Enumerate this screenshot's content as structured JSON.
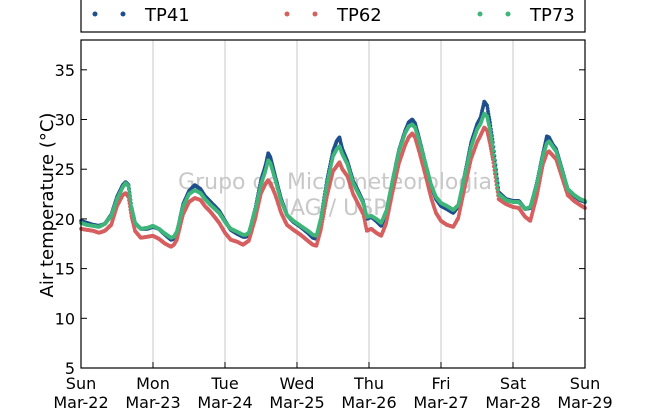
{
  "watermark": {
    "line1": "Grupo de Micrometeorologia",
    "line2": "IAG / USP"
  },
  "chart_data": {
    "type": "scatter",
    "title": "",
    "xlabel": "",
    "ylabel": "Air temperature (°C)",
    "ylim": [
      5,
      38
    ],
    "yticks": [
      5,
      10,
      15,
      20,
      25,
      30,
      35
    ],
    "xlim": [
      0,
      7
    ],
    "xticks": [
      {
        "day": "Sun",
        "date": "Mar-22"
      },
      {
        "day": "Mon",
        "date": "Mar-23"
      },
      {
        "day": "Tue",
        "date": "Mar-24"
      },
      {
        "day": "Wed",
        "date": "Mar-25"
      },
      {
        "day": "Thu",
        "date": "Mar-26"
      },
      {
        "day": "Fri",
        "date": "Mar-27"
      },
      {
        "day": "Sat",
        "date": "Mar-28"
      },
      {
        "day": "Sun",
        "date": "Mar-29"
      }
    ],
    "grid": "vertical",
    "legend_position": "top (above plot)",
    "series": [
      {
        "name": "TP41",
        "color": "#1f4e8c",
        "points": [
          [
            0.0,
            19.8
          ],
          [
            0.08,
            19.6
          ],
          [
            0.17,
            19.4
          ],
          [
            0.25,
            19.3
          ],
          [
            0.33,
            19.5
          ],
          [
            0.42,
            20.4
          ],
          [
            0.5,
            22.2
          ],
          [
            0.58,
            23.4
          ],
          [
            0.62,
            23.7
          ],
          [
            0.66,
            23.4
          ],
          [
            0.7,
            21.2
          ],
          [
            0.75,
            19.6
          ],
          [
            0.83,
            19.0
          ],
          [
            0.92,
            19.0
          ],
          [
            1.0,
            19.2
          ],
          [
            1.08,
            19.0
          ],
          [
            1.17,
            18.4
          ],
          [
            1.25,
            17.9
          ],
          [
            1.29,
            18.0
          ],
          [
            1.33,
            18.6
          ],
          [
            1.42,
            21.5
          ],
          [
            1.5,
            22.8
          ],
          [
            1.58,
            23.4
          ],
          [
            1.66,
            23.0
          ],
          [
            1.72,
            22.3
          ],
          [
            1.8,
            21.7
          ],
          [
            1.92,
            20.8
          ],
          [
            2.0,
            19.8
          ],
          [
            2.08,
            18.9
          ],
          [
            2.17,
            18.5
          ],
          [
            2.25,
            18.2
          ],
          [
            2.29,
            18.2
          ],
          [
            2.33,
            18.4
          ],
          [
            2.42,
            21.0
          ],
          [
            2.5,
            23.9
          ],
          [
            2.56,
            25.3
          ],
          [
            2.6,
            26.6
          ],
          [
            2.63,
            26.2
          ],
          [
            2.7,
            24.2
          ],
          [
            2.78,
            22.0
          ],
          [
            2.86,
            20.4
          ],
          [
            2.95,
            19.7
          ],
          [
            3.05,
            19.2
          ],
          [
            3.15,
            18.6
          ],
          [
            3.22,
            18.1
          ],
          [
            3.27,
            18.0
          ],
          [
            3.33,
            20.0
          ],
          [
            3.42,
            24.0
          ],
          [
            3.5,
            26.8
          ],
          [
            3.55,
            27.8
          ],
          [
            3.59,
            28.2
          ],
          [
            3.63,
            27.0
          ],
          [
            3.7,
            25.8
          ],
          [
            3.78,
            23.8
          ],
          [
            3.85,
            22.8
          ],
          [
            3.92,
            21.7
          ],
          [
            3.97,
            20.0
          ],
          [
            4.03,
            20.2
          ],
          [
            4.1,
            19.8
          ],
          [
            4.17,
            19.3
          ],
          [
            4.24,
            20.6
          ],
          [
            4.33,
            24.0
          ],
          [
            4.42,
            27.0
          ],
          [
            4.5,
            28.8
          ],
          [
            4.55,
            29.7
          ],
          [
            4.6,
            30.0
          ],
          [
            4.64,
            29.6
          ],
          [
            4.7,
            28.0
          ],
          [
            4.78,
            25.7
          ],
          [
            4.86,
            23.4
          ],
          [
            4.93,
            22.0
          ],
          [
            5.0,
            21.3
          ],
          [
            5.08,
            21.0
          ],
          [
            5.17,
            20.6
          ],
          [
            5.24,
            21.3
          ],
          [
            5.33,
            24.5
          ],
          [
            5.42,
            27.7
          ],
          [
            5.5,
            29.5
          ],
          [
            5.55,
            30.2
          ],
          [
            5.6,
            31.8
          ],
          [
            5.64,
            31.4
          ],
          [
            5.68,
            29.7
          ],
          [
            5.72,
            27.7
          ],
          [
            5.8,
            22.7
          ],
          [
            5.9,
            22.0
          ],
          [
            6.0,
            21.8
          ],
          [
            6.08,
            21.8
          ],
          [
            6.17,
            21.0
          ],
          [
            6.24,
            21.1
          ],
          [
            6.33,
            23.6
          ],
          [
            6.42,
            26.7
          ],
          [
            6.47,
            28.3
          ],
          [
            6.5,
            28.2
          ],
          [
            6.55,
            27.5
          ],
          [
            6.6,
            27.0
          ],
          [
            6.68,
            25.0
          ],
          [
            6.76,
            23.0
          ],
          [
            6.85,
            22.3
          ],
          [
            6.93,
            21.9
          ],
          [
            7.0,
            21.7
          ]
        ]
      },
      {
        "name": "TP62",
        "color": "#d65f5f",
        "points": [
          [
            0.0,
            19.0
          ],
          [
            0.08,
            18.9
          ],
          [
            0.17,
            18.8
          ],
          [
            0.25,
            18.6
          ],
          [
            0.33,
            18.8
          ],
          [
            0.42,
            19.4
          ],
          [
            0.5,
            21.3
          ],
          [
            0.58,
            22.4
          ],
          [
            0.62,
            22.6
          ],
          [
            0.66,
            22.2
          ],
          [
            0.7,
            20.3
          ],
          [
            0.75,
            18.8
          ],
          [
            0.83,
            18.1
          ],
          [
            0.92,
            18.2
          ],
          [
            1.0,
            18.3
          ],
          [
            1.08,
            18.0
          ],
          [
            1.17,
            17.5
          ],
          [
            1.25,
            17.2
          ],
          [
            1.29,
            17.4
          ],
          [
            1.33,
            17.9
          ],
          [
            1.42,
            20.5
          ],
          [
            1.5,
            21.7
          ],
          [
            1.58,
            22.1
          ],
          [
            1.66,
            21.9
          ],
          [
            1.72,
            21.3
          ],
          [
            1.8,
            20.7
          ],
          [
            1.92,
            19.6
          ],
          [
            2.0,
            18.6
          ],
          [
            2.08,
            17.9
          ],
          [
            2.17,
            17.7
          ],
          [
            2.25,
            17.4
          ],
          [
            2.29,
            17.6
          ],
          [
            2.33,
            17.8
          ],
          [
            2.42,
            20.0
          ],
          [
            2.5,
            22.6
          ],
          [
            2.56,
            23.5
          ],
          [
            2.6,
            23.9
          ],
          [
            2.63,
            23.6
          ],
          [
            2.7,
            22.4
          ],
          [
            2.78,
            20.6
          ],
          [
            2.86,
            19.4
          ],
          [
            2.95,
            18.9
          ],
          [
            3.05,
            18.4
          ],
          [
            3.15,
            17.8
          ],
          [
            3.22,
            17.4
          ],
          [
            3.27,
            17.3
          ],
          [
            3.33,
            18.9
          ],
          [
            3.42,
            22.4
          ],
          [
            3.5,
            24.8
          ],
          [
            3.55,
            25.3
          ],
          [
            3.59,
            25.7
          ],
          [
            3.63,
            25.0
          ],
          [
            3.7,
            24.3
          ],
          [
            3.78,
            22.5
          ],
          [
            3.85,
            21.5
          ],
          [
            3.92,
            20.5
          ],
          [
            3.97,
            18.8
          ],
          [
            4.03,
            19.0
          ],
          [
            4.1,
            18.6
          ],
          [
            4.17,
            18.3
          ],
          [
            4.24,
            19.6
          ],
          [
            4.33,
            22.8
          ],
          [
            4.42,
            25.7
          ],
          [
            4.5,
            27.4
          ],
          [
            4.55,
            28.2
          ],
          [
            4.6,
            28.6
          ],
          [
            4.64,
            28.2
          ],
          [
            4.7,
            26.7
          ],
          [
            4.78,
            24.5
          ],
          [
            4.86,
            22.2
          ],
          [
            4.93,
            20.6
          ],
          [
            5.0,
            19.8
          ],
          [
            5.08,
            19.4
          ],
          [
            5.17,
            19.2
          ],
          [
            5.24,
            20.1
          ],
          [
            5.33,
            23.2
          ],
          [
            5.42,
            26.1
          ],
          [
            5.5,
            27.7
          ],
          [
            5.55,
            28.4
          ],
          [
            5.6,
            29.2
          ],
          [
            5.64,
            28.9
          ],
          [
            5.68,
            27.6
          ],
          [
            5.72,
            26.0
          ],
          [
            5.8,
            22.0
          ],
          [
            5.9,
            21.5
          ],
          [
            6.0,
            21.2
          ],
          [
            6.08,
            21.1
          ],
          [
            6.17,
            20.2
          ],
          [
            6.24,
            19.8
          ],
          [
            6.33,
            22.3
          ],
          [
            6.42,
            25.6
          ],
          [
            6.47,
            26.6
          ],
          [
            6.5,
            26.8
          ],
          [
            6.55,
            26.4
          ],
          [
            6.6,
            26.0
          ],
          [
            6.68,
            24.2
          ],
          [
            6.76,
            22.4
          ],
          [
            6.85,
            21.8
          ],
          [
            6.93,
            21.4
          ],
          [
            7.0,
            21.1
          ]
        ]
      },
      {
        "name": "TP73",
        "color": "#3fb57a",
        "points": [
          [
            0.0,
            19.6
          ],
          [
            0.08,
            19.4
          ],
          [
            0.17,
            19.3
          ],
          [
            0.25,
            19.2
          ],
          [
            0.33,
            19.5
          ],
          [
            0.42,
            20.3
          ],
          [
            0.5,
            22.0
          ],
          [
            0.58,
            23.2
          ],
          [
            0.62,
            23.6
          ],
          [
            0.66,
            23.3
          ],
          [
            0.7,
            21.2
          ],
          [
            0.75,
            19.6
          ],
          [
            0.83,
            19.0
          ],
          [
            0.92,
            19.1
          ],
          [
            1.0,
            19.3
          ],
          [
            1.08,
            19.0
          ],
          [
            1.17,
            18.5
          ],
          [
            1.25,
            18.1
          ],
          [
            1.29,
            18.2
          ],
          [
            1.33,
            18.7
          ],
          [
            1.42,
            21.3
          ],
          [
            1.5,
            22.5
          ],
          [
            1.58,
            22.9
          ],
          [
            1.66,
            22.6
          ],
          [
            1.72,
            22.0
          ],
          [
            1.8,
            21.4
          ],
          [
            1.92,
            20.6
          ],
          [
            2.0,
            19.7
          ],
          [
            2.08,
            19.0
          ],
          [
            2.17,
            18.7
          ],
          [
            2.25,
            18.4
          ],
          [
            2.29,
            18.4
          ],
          [
            2.33,
            18.6
          ],
          [
            2.42,
            20.9
          ],
          [
            2.5,
            23.5
          ],
          [
            2.56,
            24.8
          ],
          [
            2.6,
            25.9
          ],
          [
            2.63,
            25.6
          ],
          [
            2.7,
            23.9
          ],
          [
            2.78,
            21.8
          ],
          [
            2.86,
            20.4
          ],
          [
            2.95,
            19.8
          ],
          [
            3.05,
            19.3
          ],
          [
            3.15,
            18.8
          ],
          [
            3.22,
            18.4
          ],
          [
            3.27,
            18.3
          ],
          [
            3.33,
            20.0
          ],
          [
            3.42,
            23.7
          ],
          [
            3.5,
            26.3
          ],
          [
            3.55,
            27.0
          ],
          [
            3.59,
            27.3
          ],
          [
            3.63,
            26.5
          ],
          [
            3.7,
            25.5
          ],
          [
            3.78,
            23.6
          ],
          [
            3.85,
            22.6
          ],
          [
            3.92,
            21.6
          ],
          [
            3.97,
            20.2
          ],
          [
            4.03,
            20.3
          ],
          [
            4.1,
            20.0
          ],
          [
            4.17,
            19.6
          ],
          [
            4.24,
            20.8
          ],
          [
            4.33,
            24.0
          ],
          [
            4.42,
            26.9
          ],
          [
            4.5,
            28.6
          ],
          [
            4.55,
            29.3
          ],
          [
            4.6,
            29.5
          ],
          [
            4.64,
            29.2
          ],
          [
            4.7,
            27.8
          ],
          [
            4.78,
            25.7
          ],
          [
            4.86,
            23.5
          ],
          [
            4.93,
            22.2
          ],
          [
            5.0,
            21.6
          ],
          [
            5.08,
            21.3
          ],
          [
            5.17,
            20.9
          ],
          [
            5.24,
            21.4
          ],
          [
            5.33,
            24.4
          ],
          [
            5.42,
            27.3
          ],
          [
            5.5,
            29.0
          ],
          [
            5.55,
            29.6
          ],
          [
            5.6,
            30.6
          ],
          [
            5.64,
            30.3
          ],
          [
            5.68,
            29.0
          ],
          [
            5.72,
            27.3
          ],
          [
            5.8,
            22.5
          ],
          [
            5.9,
            21.9
          ],
          [
            6.0,
            21.7
          ],
          [
            6.08,
            21.7
          ],
          [
            6.17,
            21.0
          ],
          [
            6.24,
            21.2
          ],
          [
            6.33,
            23.5
          ],
          [
            6.42,
            26.5
          ],
          [
            6.47,
            27.6
          ],
          [
            6.5,
            27.8
          ],
          [
            6.55,
            27.3
          ],
          [
            6.6,
            26.8
          ],
          [
            6.68,
            24.9
          ],
          [
            6.76,
            23.0
          ],
          [
            6.85,
            22.4
          ],
          [
            6.93,
            22.0
          ],
          [
            7.0,
            21.8
          ]
        ]
      }
    ]
  }
}
